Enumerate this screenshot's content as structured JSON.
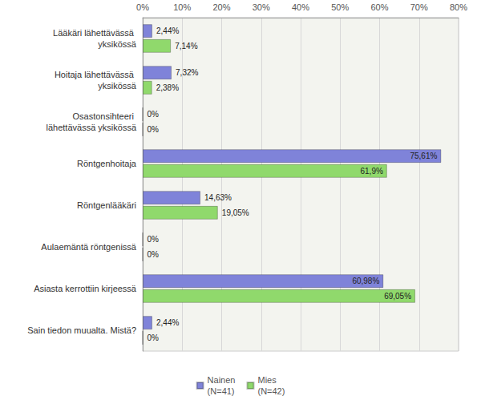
{
  "chart_data": {
    "type": "bar",
    "orientation": "horizontal",
    "categories": [
      "Lääkäri lähettävässä yksikössä",
      "Hoitaja lähettävässä yksikössä",
      "Osastonsihteeri lähettävässä yksikössä",
      "Röntgenhoitaja",
      "Röntgenlääkäri",
      "Aulaemäntä röntgenissä",
      "Asiasta kerrottiin kirjeessä",
      "Sain tiedon muualta. Mistä?"
    ],
    "series": [
      {
        "name": "Nainen (N=41)",
        "color": "#7f83d9",
        "values": [
          2.44,
          7.32,
          0,
          75.61,
          14.63,
          0,
          60.98,
          2.44
        ],
        "value_labels": [
          "2,44%",
          "7,32%",
          "0%",
          "75,61%",
          "14,63%",
          "0%",
          "60,98%",
          "2,44%"
        ]
      },
      {
        "name": "Mies (N=42)",
        "color": "#90d96c",
        "values": [
          7.14,
          2.38,
          0,
          61.9,
          19.05,
          0,
          69.05,
          0
        ],
        "value_labels": [
          "7,14%",
          "2,38%",
          "0%",
          "61,9%",
          "19,05%",
          "0%",
          "69,05%",
          "0%"
        ]
      }
    ],
    "xlim": [
      0,
      80
    ],
    "xticks": [
      {
        "value": 0,
        "label": "0%"
      },
      {
        "value": 10,
        "label": "10%"
      },
      {
        "value": 20,
        "label": "20%"
      },
      {
        "value": 30,
        "label": "30%"
      },
      {
        "value": 40,
        "label": "40%"
      },
      {
        "value": 50,
        "label": "50%"
      },
      {
        "value": 60,
        "label": "60%"
      },
      {
        "value": 70,
        "label": "70%"
      },
      {
        "value": 80,
        "label": "80%"
      }
    ],
    "grid": true,
    "legend": "bottom",
    "data_labels": true
  }
}
